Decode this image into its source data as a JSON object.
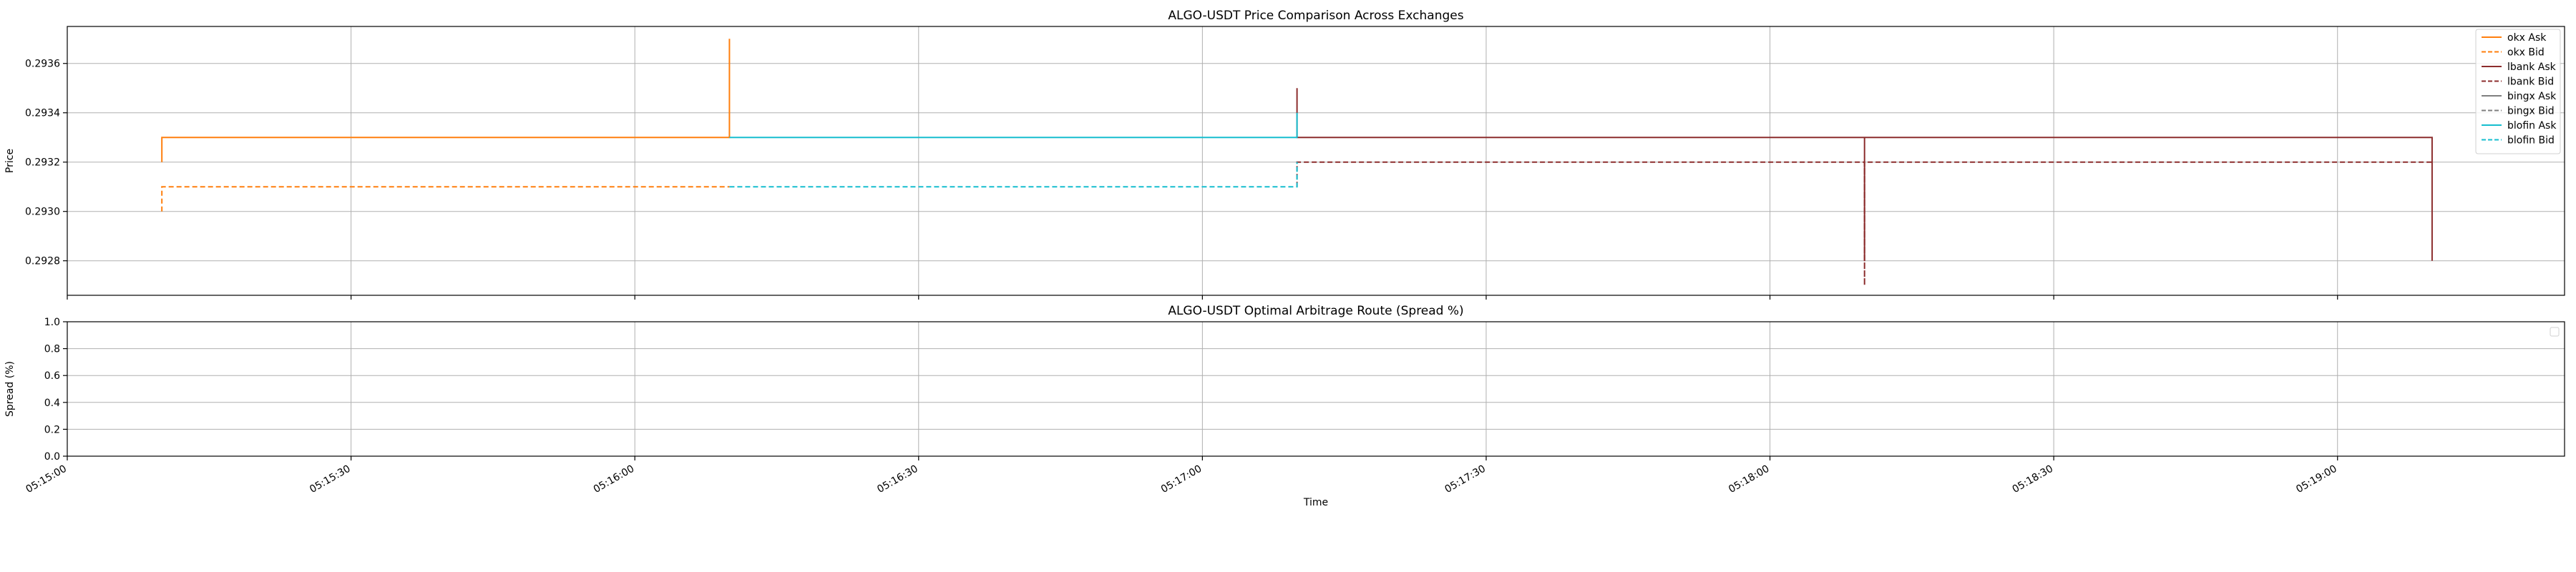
{
  "chart_data": [
    {
      "type": "line",
      "title": "ALGO-USDT Price Comparison Across Exchanges",
      "ylabel": "Price",
      "xlabel": "",
      "xlim": [
        "05:15:00",
        "05:19:24"
      ],
      "ylim": [
        0.29266,
        0.29375
      ],
      "yticks": [
        0.2928,
        0.293,
        0.2932,
        0.2934,
        0.2936
      ],
      "ytick_labels": [
        "0.2928",
        "0.2930",
        "0.2932",
        "0.2934",
        "0.2936"
      ],
      "grid": true,
      "legend_position": "top-right",
      "series": [
        {
          "name": "okx Ask",
          "color": "#ff7f0e",
          "dash": "solid",
          "x": [
            "05:15:10",
            "05:15:10",
            "05:16:10",
            "05:16:10",
            "05:16:10"
          ],
          "y": [
            0.2932,
            0.2933,
            0.2933,
            0.2937,
            0.2933
          ]
        },
        {
          "name": "okx Bid",
          "color": "#ff7f0e",
          "dash": "dashed",
          "x": [
            "05:15:10",
            "05:15:10",
            "05:16:10",
            "05:16:10"
          ],
          "y": [
            0.293,
            0.2931,
            0.2931,
            0.2931
          ]
        },
        {
          "name": "lbank Ask",
          "color": "#8c2d2d",
          "dash": "solid",
          "x": [
            "05:17:10",
            "05:17:10",
            "05:17:10",
            "05:18:10",
            "05:18:10",
            "05:18:10",
            "05:19:10",
            "05:19:10"
          ],
          "y": [
            0.2935,
            0.2933,
            0.2933,
            0.2933,
            0.2928,
            0.2933,
            0.2933,
            0.2928
          ]
        },
        {
          "name": "lbank Bid",
          "color": "#8c2d2d",
          "dash": "dashed",
          "x": [
            "05:17:10",
            "05:17:10",
            "05:18:10",
            "05:18:10",
            "05:18:10",
            "05:19:10"
          ],
          "y": [
            0.2931,
            0.2932,
            0.2932,
            0.2927,
            0.2932,
            0.2932
          ]
        },
        {
          "name": "bingx Ask",
          "color": "#7f7f7f",
          "dash": "solid",
          "x": [
            "05:17:10",
            "05:17:10"
          ],
          "y": [
            0.2933,
            0.2933
          ]
        },
        {
          "name": "bingx Bid",
          "color": "#7f7f7f",
          "dash": "dashed",
          "x": [
            "05:17:10",
            "05:17:10"
          ],
          "y": [
            0.2932,
            0.2932
          ]
        },
        {
          "name": "blofin Ask",
          "color": "#17becf",
          "dash": "solid",
          "x": [
            "05:16:10",
            "05:16:10",
            "05:17:10",
            "05:17:10"
          ],
          "y": [
            0.2933,
            0.2933,
            0.2933,
            0.2934
          ]
        },
        {
          "name": "blofin Bid",
          "color": "#17becf",
          "dash": "dashed",
          "x": [
            "05:16:10",
            "05:16:10",
            "05:17:10",
            "05:17:10"
          ],
          "y": [
            0.2931,
            0.2931,
            0.2931,
            0.2932
          ]
        }
      ]
    },
    {
      "type": "line",
      "title": "ALGO-USDT Optimal Arbitrage Route (Spread %)",
      "ylabel": "Spread (%)",
      "xlabel": "Time",
      "xlim": [
        "05:15:00",
        "05:19:24"
      ],
      "ylim": [
        0.0,
        1.0
      ],
      "yticks": [
        0.0,
        0.2,
        0.4,
        0.6,
        0.8,
        1.0
      ],
      "ytick_labels": [
        "0.0",
        "0.2",
        "0.4",
        "0.6",
        "0.8",
        "1.0"
      ],
      "xticks": [
        "05:15:00",
        "05:15:30",
        "05:16:00",
        "05:16:30",
        "05:17:00",
        "05:17:30",
        "05:18:00",
        "05:18:30",
        "05:19:00"
      ],
      "xtick_labels": [
        "05:15:00",
        "05:15:30",
        "05:16:00",
        "05:16:30",
        "05:17:00",
        "05:17:30",
        "05:18:00",
        "05:18:30",
        "05:19:00"
      ],
      "grid": true,
      "series": []
    }
  ]
}
